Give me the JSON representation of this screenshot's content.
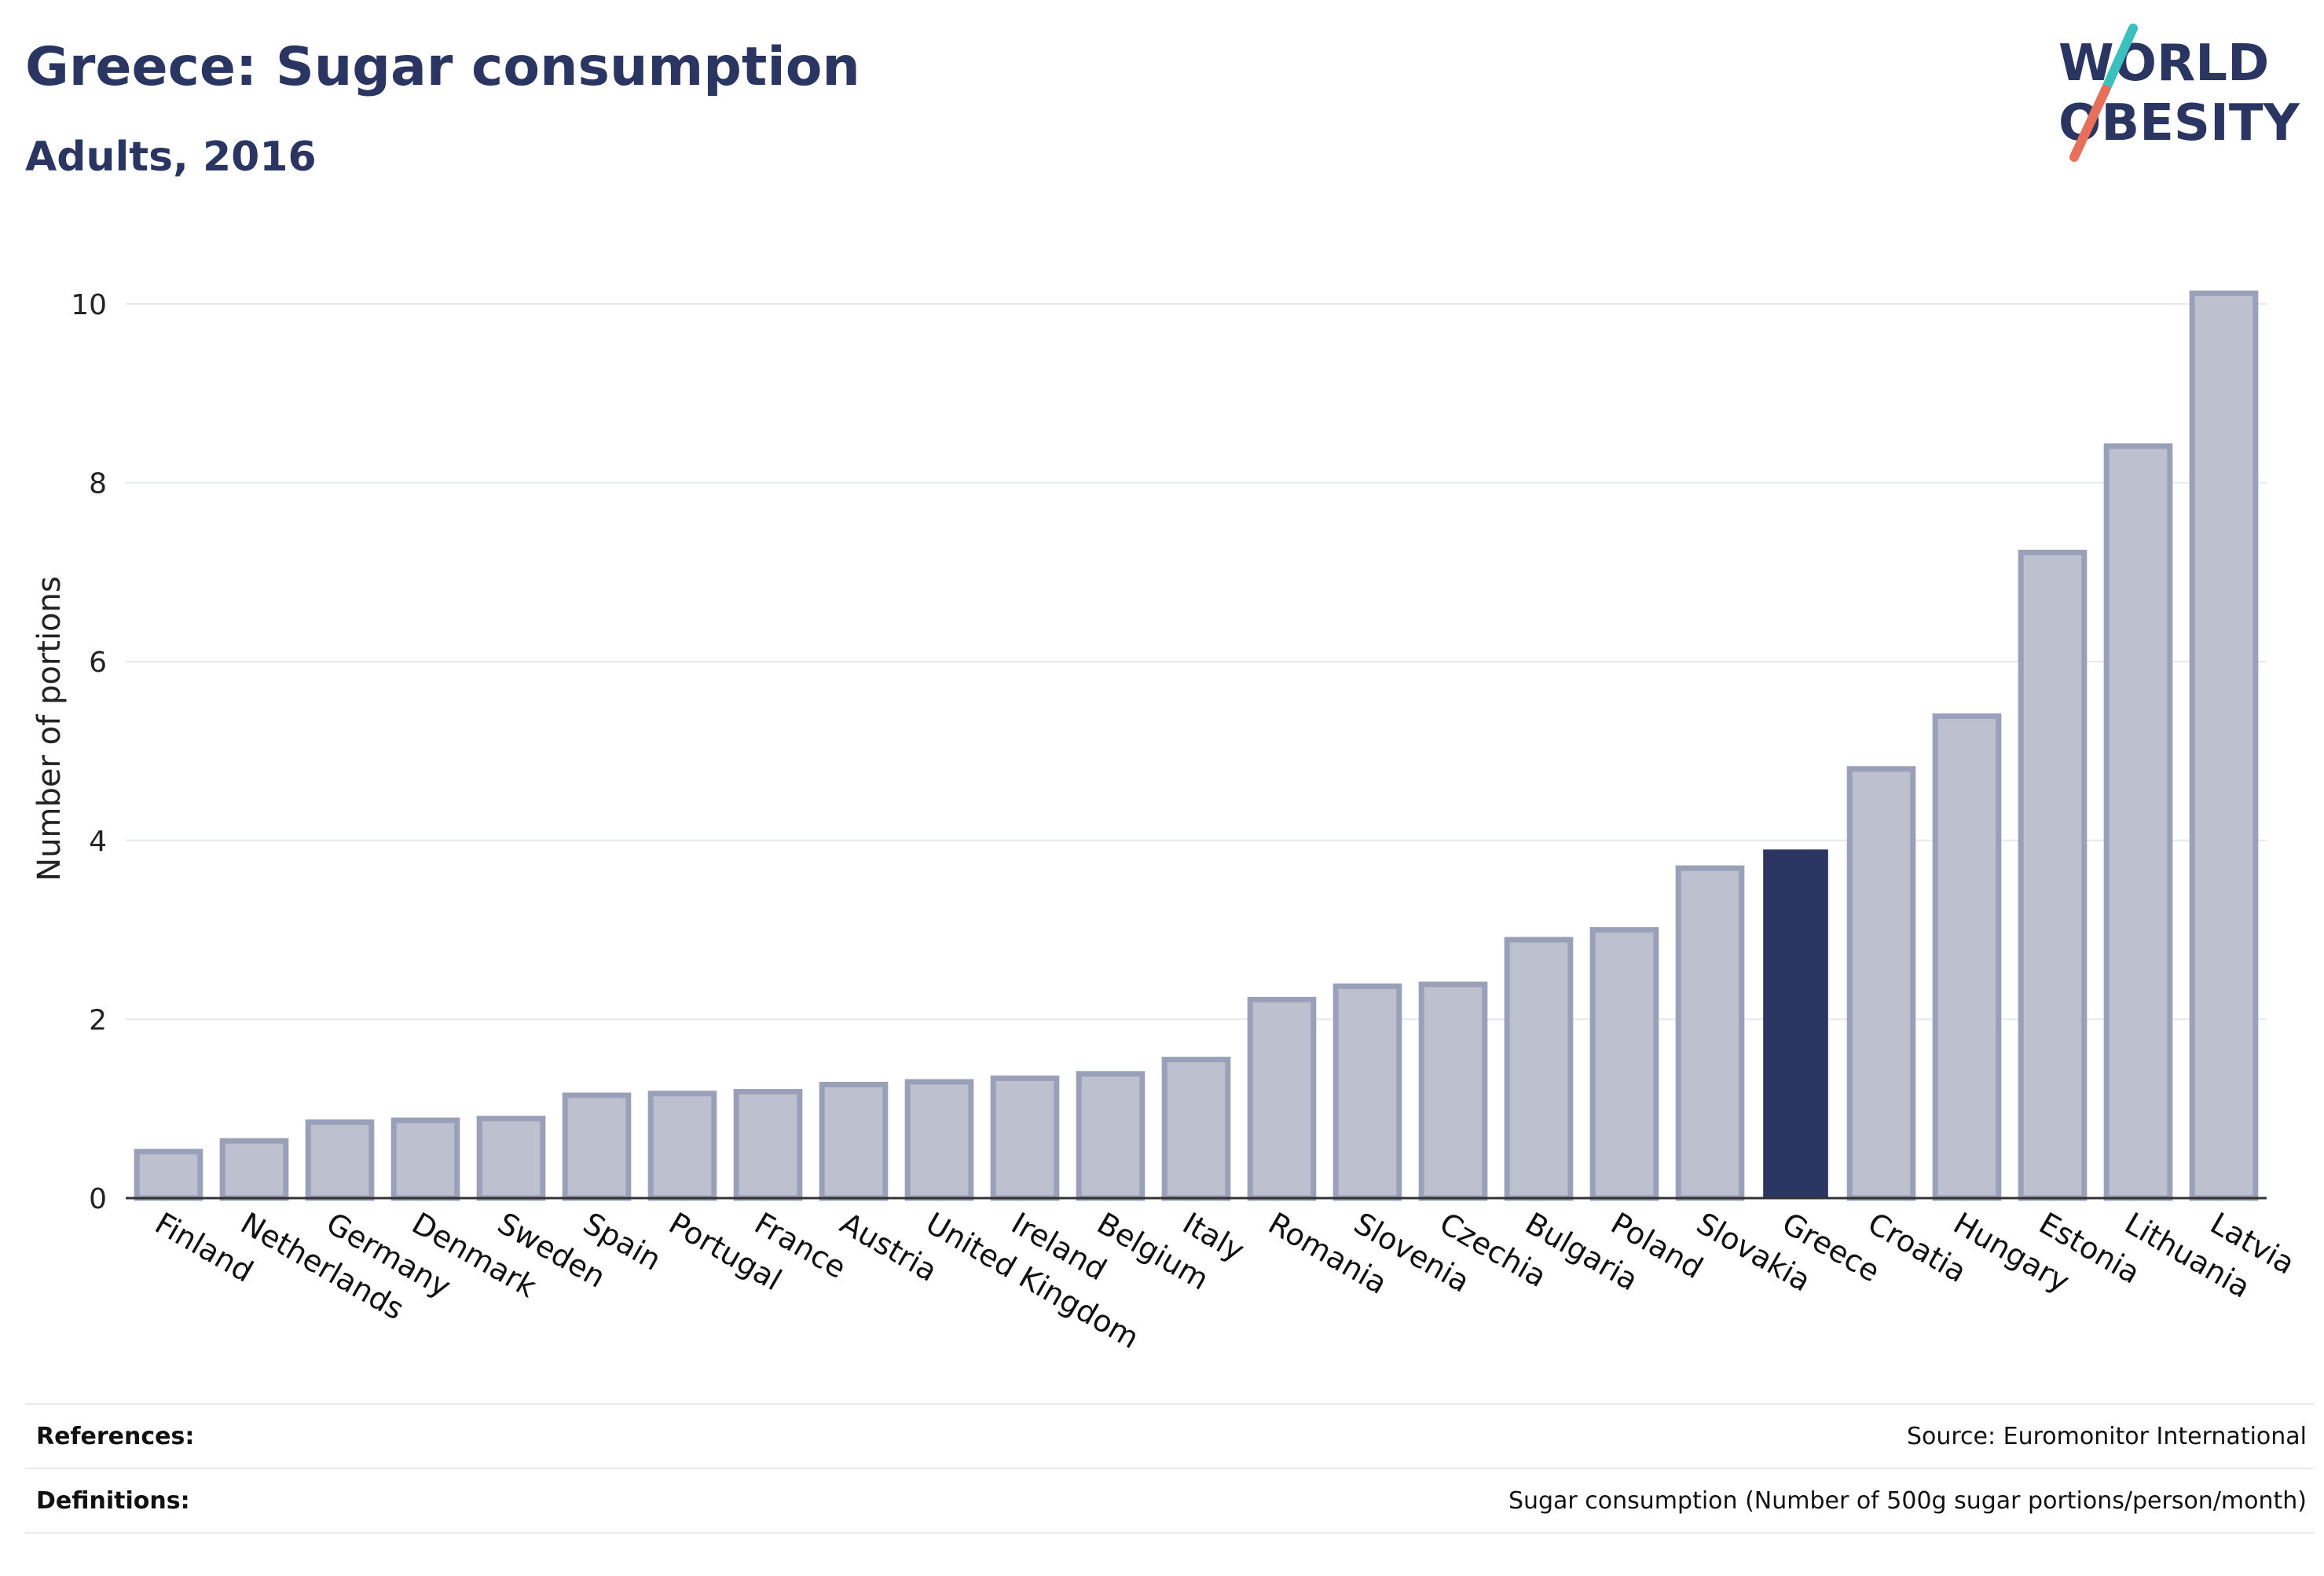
{
  "header": {
    "title": "Greece: Sugar consumption",
    "subtitle": "Adults, 2016"
  },
  "logo": {
    "line1": "WORLD",
    "line2": "OBESITY",
    "brand_color": "#2a3561",
    "accent_teal": "#3cbfbf",
    "accent_coral": "#e8705a"
  },
  "colors": {
    "highlight_bar": "#2a3561",
    "default_bar_fill": "#bcc0cf",
    "default_bar_stroke": "#9aa0b8",
    "gridline": "#e6e8ee",
    "axis": "#333333"
  },
  "chart_data": {
    "type": "bar",
    "title": "",
    "xlabel": "",
    "ylabel": "Number of portions",
    "ylim": [
      0,
      10.5
    ],
    "yticks": [
      0,
      2,
      4,
      6,
      8,
      10
    ],
    "grid": true,
    "highlight": "Greece",
    "categories": [
      "Finland",
      "Netherlands",
      "Germany",
      "Denmark",
      "Sweden",
      "Spain",
      "Portugal",
      "France",
      "Austria",
      "United Kingdom",
      "Ireland",
      "Belgium",
      "Italy",
      "Romania",
      "Slovenia",
      "Czechia",
      "Bulgaria",
      "Poland",
      "Slovakia",
      "Greece",
      "Croatia",
      "Hungary",
      "Estonia",
      "Lithuania",
      "Latvia"
    ],
    "values": [
      0.52,
      0.64,
      0.85,
      0.87,
      0.89,
      1.15,
      1.17,
      1.19,
      1.27,
      1.3,
      1.34,
      1.39,
      1.55,
      2.22,
      2.37,
      2.39,
      2.89,
      3.0,
      3.69,
      3.89,
      4.8,
      5.39,
      7.22,
      8.41,
      10.12
    ]
  },
  "footer": {
    "references_label": "References:",
    "references_value": "Source: Euromonitor International",
    "definitions_label": "Definitions:",
    "definitions_value": "Sugar consumption (Number of 500g sugar portions/person/month)"
  }
}
